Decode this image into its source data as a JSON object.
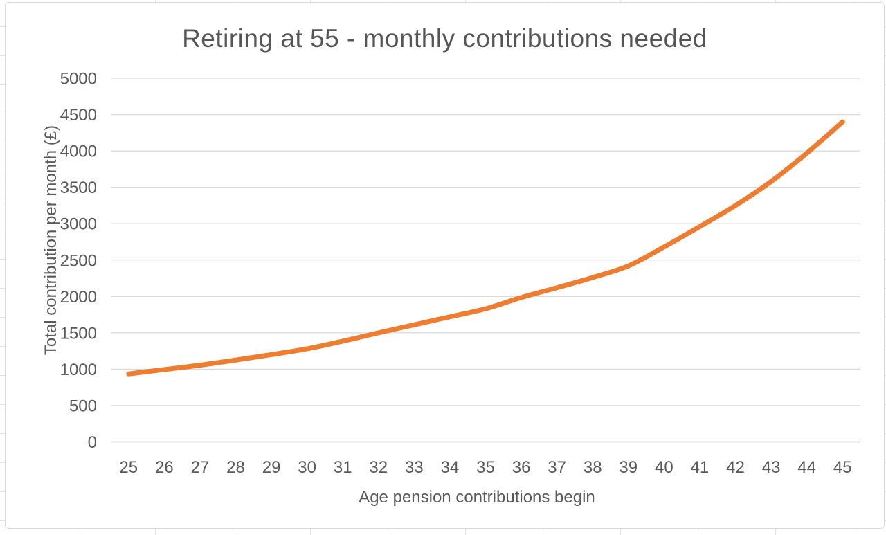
{
  "chart_data": {
    "type": "line",
    "title": "Retiring at 55 - monthly contributions needed",
    "xlabel": "Age pension contributions begin",
    "ylabel": "Total contribution per month (£)",
    "x": [
      25,
      26,
      27,
      28,
      29,
      30,
      31,
      32,
      33,
      34,
      35,
      36,
      37,
      38,
      39,
      40,
      41,
      42,
      43,
      44,
      45
    ],
    "values": [
      935,
      995,
      1055,
      1125,
      1200,
      1280,
      1385,
      1500,
      1610,
      1720,
      1830,
      1985,
      2120,
      2260,
      2420,
      2680,
      2960,
      3250,
      3580,
      3970,
      4400
    ],
    "ylim": [
      0,
      5000
    ],
    "ytick_step": 500,
    "grid": true,
    "legend": "none",
    "smooth": true,
    "colors": {
      "line": "#ED7D31",
      "gridline": "#D9D9D9",
      "axis_line": "#BFBFBF",
      "tick_text": "#595959",
      "title_text": "#555555",
      "chart_border": "#D9D9D9"
    }
  }
}
